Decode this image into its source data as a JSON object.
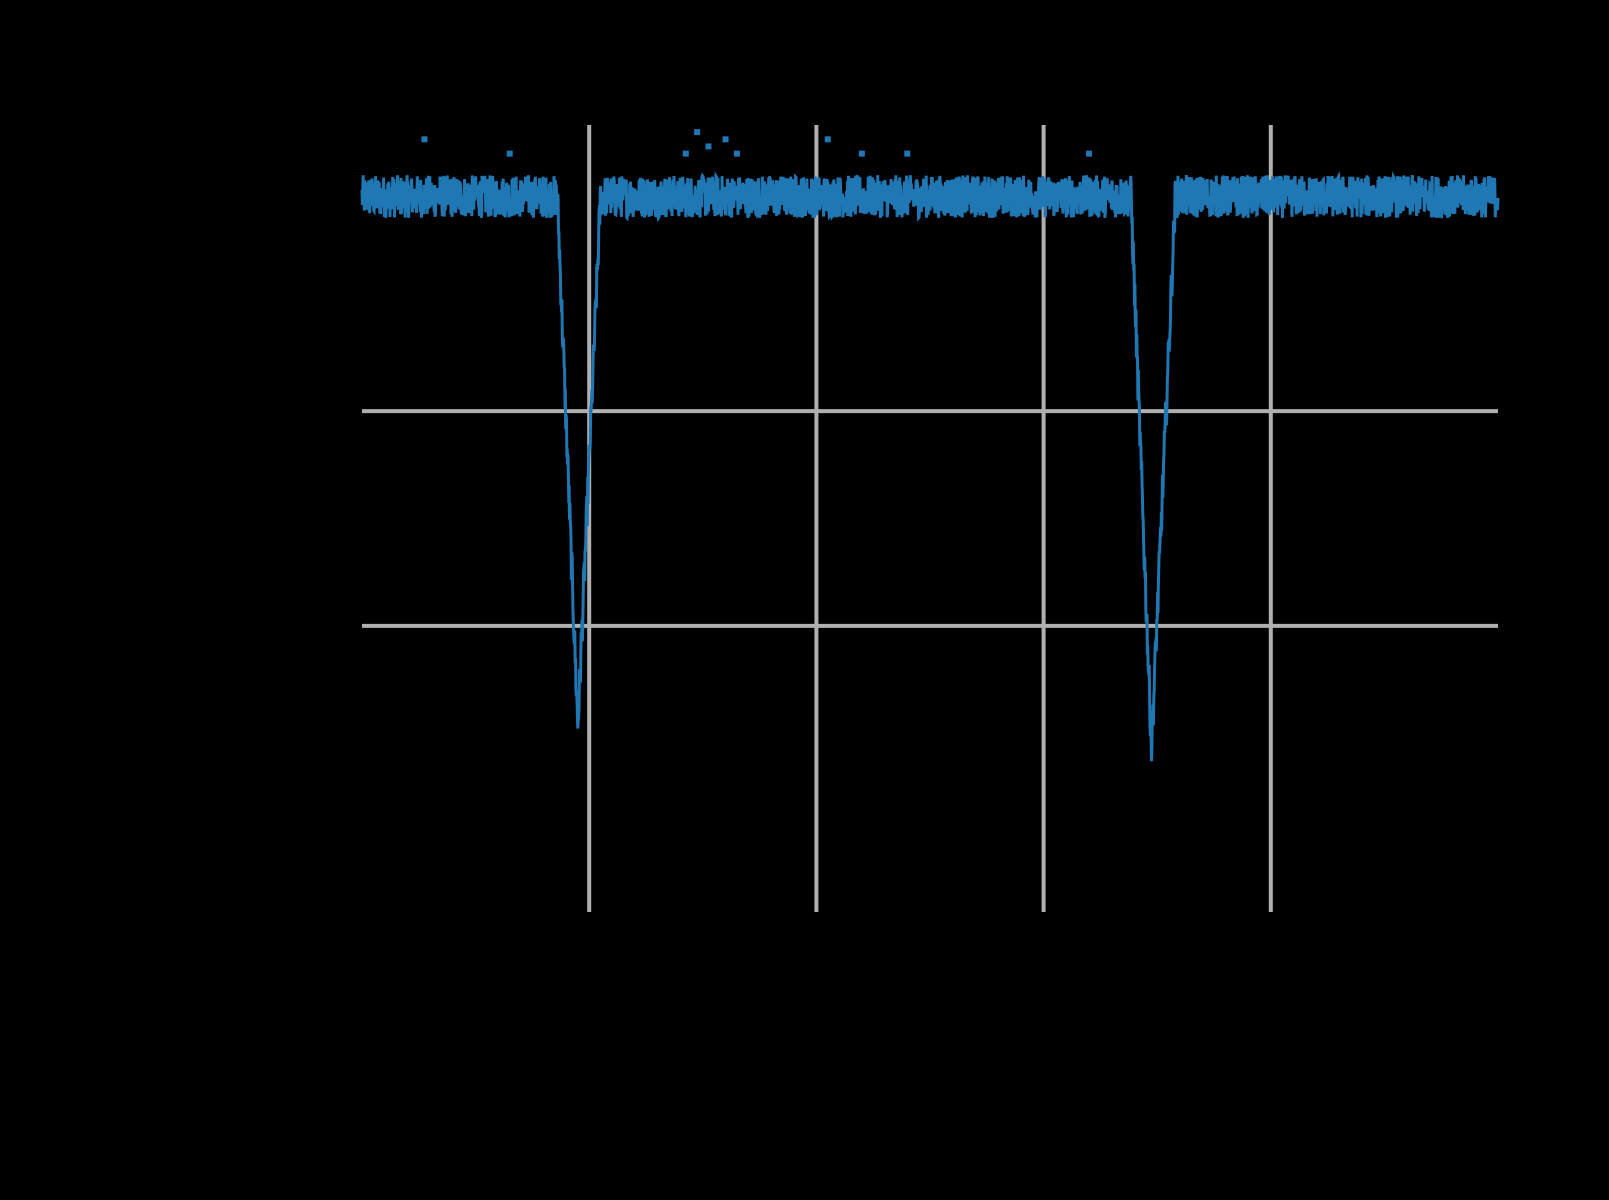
{
  "chart_data": {
    "type": "line",
    "title": "",
    "xlabel": "",
    "ylabel": "",
    "grid": true,
    "legend": "none",
    "xlim": [
      0,
      1.0
    ],
    "ylim": [
      0,
      1.1
    ],
    "xgrid": [
      0.2,
      0.4,
      0.6,
      0.8
    ],
    "ygrid": [
      0.4,
      0.7
    ],
    "series": [
      {
        "values_description_free": true,
        "baseline": 1.0,
        "noise_amplitude": 0.03,
        "outliers": [
          [
            0.055,
            1.08
          ],
          [
            0.13,
            1.06
          ],
          [
            0.285,
            1.06
          ],
          [
            0.295,
            1.09
          ],
          [
            0.305,
            1.07
          ],
          [
            0.32,
            1.08
          ],
          [
            0.33,
            1.06
          ],
          [
            0.41,
            1.08
          ],
          [
            0.44,
            1.06
          ],
          [
            0.48,
            1.06
          ],
          [
            0.64,
            1.06
          ]
        ],
        "dips": [
          {
            "center": 0.19,
            "depth": 0.26,
            "start": 0.172,
            "end": 0.21
          },
          {
            "center": 0.695,
            "depth": 0.23,
            "start": 0.677,
            "end": 0.716
          }
        ]
      }
    ]
  },
  "colors": {
    "background": "#000000",
    "series": "#1f77b4",
    "grid": "#b0b0b0"
  }
}
